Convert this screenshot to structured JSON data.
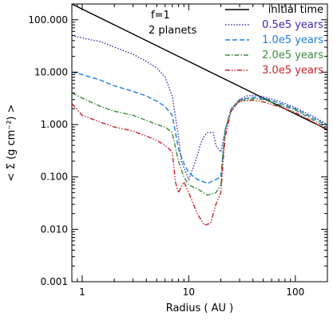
{
  "chart_data": {
    "type": "line",
    "xlabel": "Radius ( AU )",
    "ylabel": "< Σ (g cm⁻²) >",
    "x_scale": "log",
    "y_scale": "log",
    "xlim": [
      0.8,
      200
    ],
    "ylim": [
      0.001,
      200
    ],
    "x_ticks": [
      {
        "value": 1,
        "label": "1"
      },
      {
        "value": 10,
        "label": "10"
      },
      {
        "value": 100,
        "label": "100"
      }
    ],
    "y_ticks": [
      {
        "value": 0.001,
        "label": "0.001"
      },
      {
        "value": 0.01,
        "label": "0.010"
      },
      {
        "value": 0.1,
        "label": "0.100"
      },
      {
        "value": 1,
        "label": "1.000"
      },
      {
        "value": 10,
        "label": "10.000"
      },
      {
        "value": 100,
        "label": "100.000"
      }
    ],
    "annotations": [
      "f=1",
      "2 planets"
    ],
    "legend_position": "top-right",
    "grid": false,
    "series": [
      {
        "name": "initial time",
        "color": "#000000",
        "dash": "solid",
        "points": [
          [
            0.8,
            200
          ],
          [
            1,
            160
          ],
          [
            2,
            80
          ],
          [
            5,
            32
          ],
          [
            10,
            16
          ],
          [
            20,
            8
          ],
          [
            50,
            3.2
          ],
          [
            100,
            1.6
          ],
          [
            200,
            0.8
          ]
        ]
      },
      {
        "name": "0.5e5 years",
        "color": "#3b2aa8",
        "dash": "dotted",
        "points": [
          [
            0.8,
            50
          ],
          [
            1,
            45
          ],
          [
            1.5,
            38
          ],
          [
            2,
            30
          ],
          [
            3,
            22
          ],
          [
            4,
            16
          ],
          [
            5,
            12
          ],
          [
            6,
            8
          ],
          [
            7,
            3.5
          ],
          [
            8,
            0.6
          ],
          [
            8.5,
            0.2
          ],
          [
            9,
            0.15
          ],
          [
            10,
            0.09
          ],
          [
            11,
            0.15
          ],
          [
            12,
            0.25
          ],
          [
            13,
            0.45
          ],
          [
            14,
            0.6
          ],
          [
            15,
            0.7
          ],
          [
            17,
            0.7
          ],
          [
            18,
            0.4
          ],
          [
            20,
            0.3
          ],
          [
            22,
            0.8
          ],
          [
            25,
            2
          ],
          [
            30,
            3
          ],
          [
            35,
            3.5
          ],
          [
            40,
            3.6
          ],
          [
            50,
            3.4
          ],
          [
            70,
            2.8
          ],
          [
            100,
            2.1
          ],
          [
            150,
            1.4
          ],
          [
            200,
            1
          ]
        ]
      },
      {
        "name": "1.0e5 years",
        "color": "#1e7fd6",
        "dash": "dashed",
        "points": [
          [
            0.8,
            10
          ],
          [
            1,
            9
          ],
          [
            1.5,
            7
          ],
          [
            2,
            5.5
          ],
          [
            3,
            4.3
          ],
          [
            4,
            3.5
          ],
          [
            5,
            2.8
          ],
          [
            6,
            2.2
          ],
          [
            7,
            1.5
          ],
          [
            8,
            0.35
          ],
          [
            9,
            0.18
          ],
          [
            10,
            0.12
          ],
          [
            12,
            0.09
          ],
          [
            15,
            0.075
          ],
          [
            18,
            0.09
          ],
          [
            20,
            0.1
          ],
          [
            21,
            0.3
          ],
          [
            22,
            0.8
          ],
          [
            25,
            2
          ],
          [
            30,
            3
          ],
          [
            40,
            3.3
          ],
          [
            50,
            3.2
          ],
          [
            70,
            2.6
          ],
          [
            100,
            2
          ],
          [
            150,
            1.3
          ],
          [
            200,
            0.95
          ]
        ]
      },
      {
        "name": "2.0e5 years",
        "color": "#3c8a3a",
        "dash": "dashdot",
        "points": [
          [
            0.8,
            4
          ],
          [
            1,
            3.2
          ],
          [
            1.5,
            2.2
          ],
          [
            2,
            1.8
          ],
          [
            3,
            1.5
          ],
          [
            4,
            1.2
          ],
          [
            5,
            1
          ],
          [
            6,
            0.9
          ],
          [
            7,
            0.7
          ],
          [
            8,
            0.2
          ],
          [
            9,
            0.1
          ],
          [
            10,
            0.07
          ],
          [
            12,
            0.06
          ],
          [
            15,
            0.045
          ],
          [
            18,
            0.05
          ],
          [
            20,
            0.07
          ],
          [
            21,
            0.3
          ],
          [
            22,
            0.8
          ],
          [
            25,
            1.9
          ],
          [
            30,
            2.9
          ],
          [
            40,
            3.1
          ],
          [
            50,
            3
          ],
          [
            70,
            2.4
          ],
          [
            100,
            1.9
          ],
          [
            150,
            1.2
          ],
          [
            200,
            0.85
          ]
        ]
      },
      {
        "name": "3.0e5 years",
        "color": "#c8202a",
        "dash": "dashdotdot",
        "points": [
          [
            0.8,
            2.5
          ],
          [
            1,
            1.5
          ],
          [
            1.5,
            1.1
          ],
          [
            2,
            0.9
          ],
          [
            3,
            0.75
          ],
          [
            4,
            0.6
          ],
          [
            5,
            0.5
          ],
          [
            6,
            0.4
          ],
          [
            7,
            0.3
          ],
          [
            7.5,
            0.08
          ],
          [
            8,
            0.05
          ],
          [
            9,
            0.08
          ],
          [
            10,
            0.05
          ],
          [
            12,
            0.02
          ],
          [
            14,
            0.012
          ],
          [
            16,
            0.013
          ],
          [
            18,
            0.03
          ],
          [
            20,
            0.05
          ],
          [
            21,
            0.2
          ],
          [
            22,
            0.6
          ],
          [
            25,
            1.8
          ],
          [
            30,
            2.8
          ],
          [
            40,
            2.9
          ],
          [
            50,
            2.7
          ],
          [
            70,
            2.2
          ],
          [
            100,
            1.7
          ],
          [
            150,
            1.1
          ],
          [
            200,
            0.75
          ]
        ]
      }
    ]
  }
}
